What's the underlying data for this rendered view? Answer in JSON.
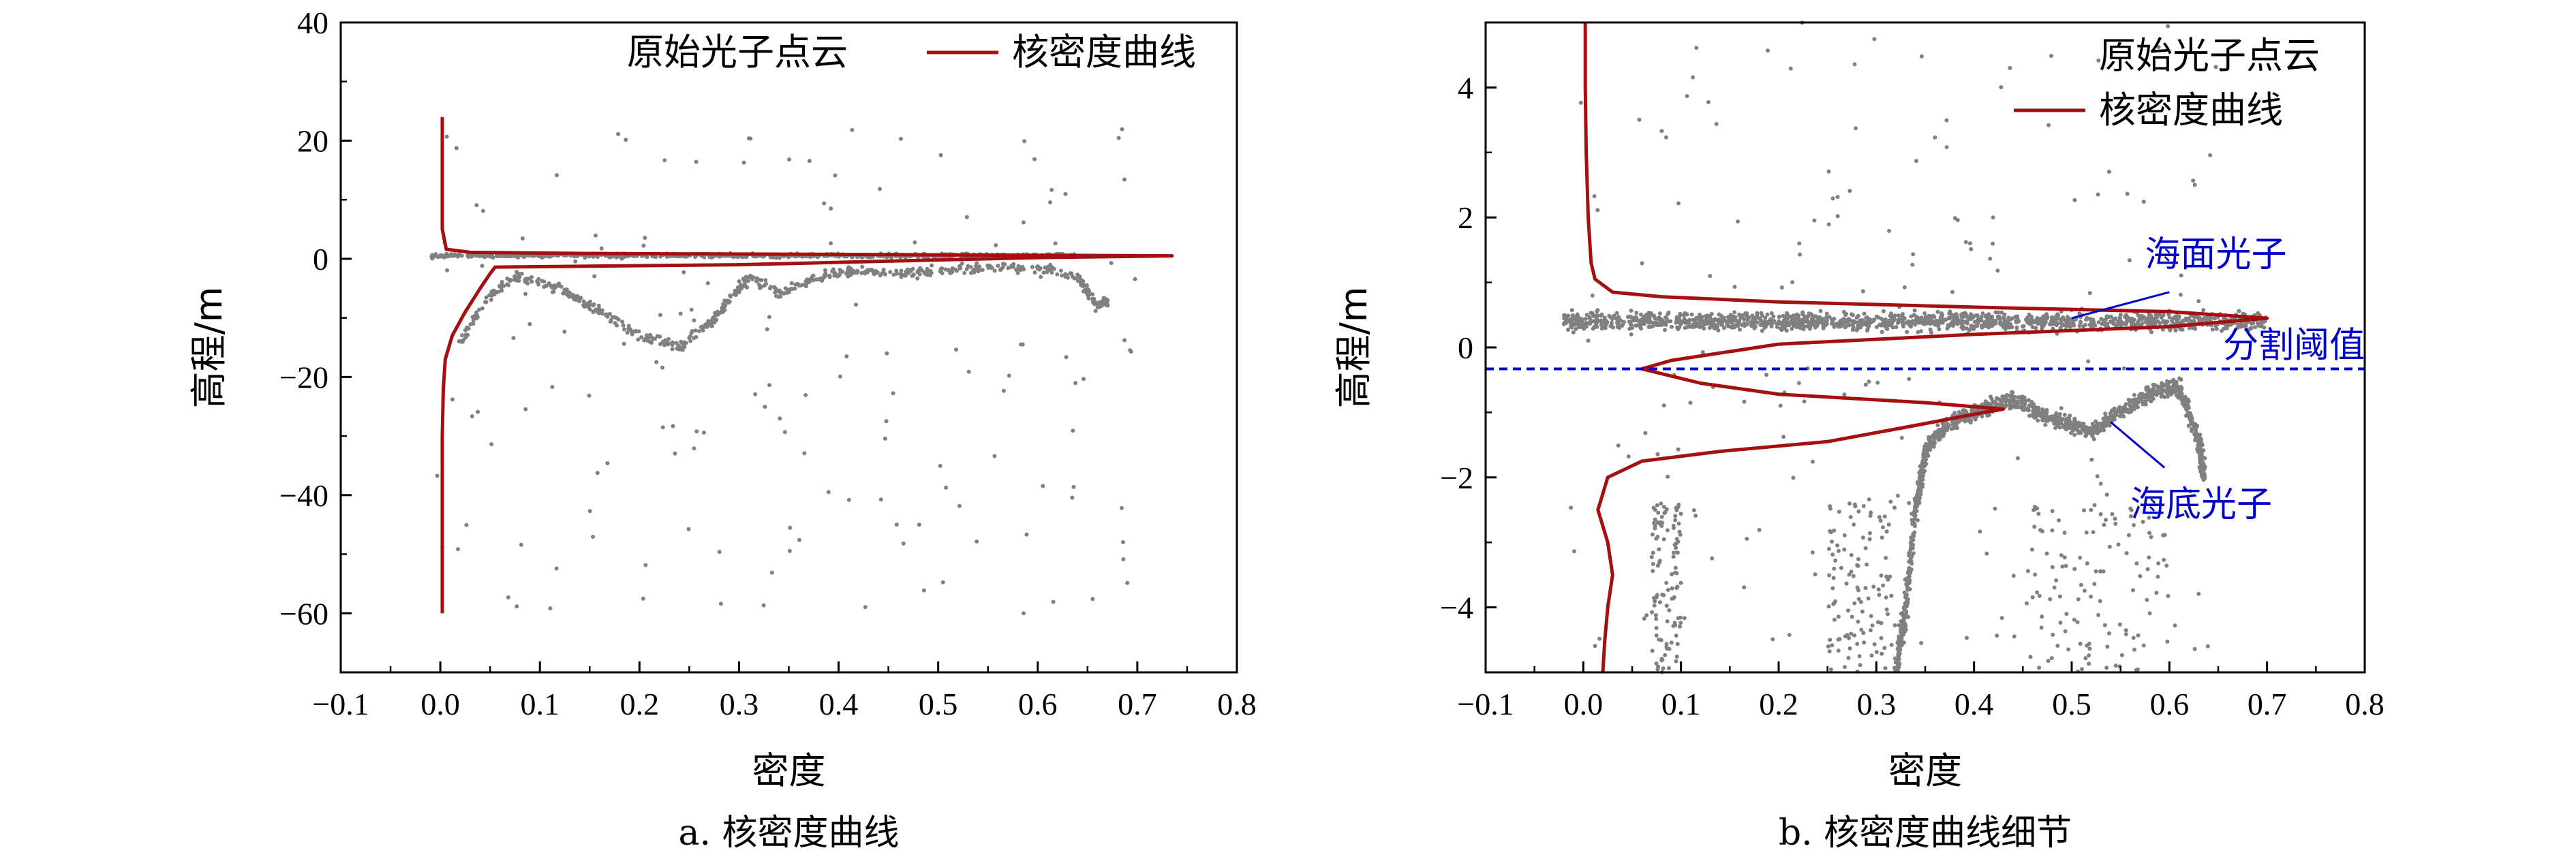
{
  "colors": {
    "points": "#808080",
    "curve": "#a50f0f",
    "threshold": "#0000cc",
    "annotation": "#0000cc",
    "axis": "#000000"
  },
  "legend": {
    "points_label": "原始光子点云",
    "curve_label": "核密度曲线"
  },
  "chart_data": [
    {
      "type": "scatter",
      "caption": "a. 核密度曲线",
      "xlabel": "密度",
      "ylabel": "高程/m",
      "xlim": [
        -0.1,
        0.8
      ],
      "ylim": [
        -70,
        40
      ],
      "xticks": [
        "−0.1",
        "0.0",
        "0.1",
        "0.2",
        "0.3",
        "0.4",
        "0.5",
        "0.6",
        "0.7",
        "0.8"
      ],
      "xtick_values": [
        -0.1,
        0,
        0.1,
        0.2,
        0.3,
        0.4,
        0.5,
        0.6,
        0.7,
        0.8
      ],
      "yticks": [
        "40",
        "20",
        "0",
        "−20",
        "−40",
        "−60"
      ],
      "ytick_values": [
        40,
        20,
        0,
        -20,
        -40,
        -60
      ],
      "legend_position": "top",
      "series": [
        {
          "name": "原始光子点云",
          "kind": "points",
          "surface_x_range": [
            -0.01,
            0.64
          ],
          "surface_y_range": [
            0.1,
            1.0
          ],
          "bottom_profile": [
            [
              0.02,
              -14
            ],
            [
              0.05,
              -6
            ],
            [
              0.08,
              -3
            ],
            [
              0.12,
              -5
            ],
            [
              0.16,
              -9
            ],
            [
              0.2,
              -13
            ],
            [
              0.24,
              -15
            ],
            [
              0.27,
              -11
            ],
            [
              0.29,
              -7
            ],
            [
              0.31,
              -3
            ],
            [
              0.34,
              -6
            ],
            [
              0.38,
              -3
            ],
            [
              0.42,
              -2
            ],
            [
              0.46,
              -2.5
            ],
            [
              0.5,
              -2
            ],
            [
              0.55,
              -1.5
            ],
            [
              0.6,
              -1.5
            ],
            [
              0.64,
              -3
            ],
            [
              0.66,
              -8
            ],
            [
              0.67,
              -7
            ]
          ],
          "scattered_noise_x_range": [
            -0.01,
            0.7
          ],
          "scattered_noise_y_range": [
            -60,
            22
          ]
        },
        {
          "name": "核密度曲线",
          "kind": "curve",
          "points": [
            [
              0.002,
              -60
            ],
            [
              0.002,
              -50
            ],
            [
              0.002,
              -40
            ],
            [
              0.002,
              -30
            ],
            [
              0.003,
              -22
            ],
            [
              0.005,
              -17
            ],
            [
              0.012,
              -13
            ],
            [
              0.025,
              -9
            ],
            [
              0.04,
              -5
            ],
            [
              0.05,
              -2.5
            ],
            [
              0.055,
              -1.4
            ],
            [
              0.3,
              -1.0
            ],
            [
              0.5,
              -0.2
            ],
            [
              0.6,
              0.2
            ],
            [
              0.735,
              0.5
            ],
            [
              0.45,
              0.7
            ],
            [
              0.15,
              0.9
            ],
            [
              0.03,
              1.1
            ],
            [
              0.006,
              1.6
            ],
            [
              0.002,
              5
            ],
            [
              0.002,
              15
            ],
            [
              0.002,
              24
            ]
          ]
        }
      ]
    },
    {
      "type": "scatter",
      "caption": "b. 核密度曲线细节",
      "xlabel": "密度",
      "ylabel": "高程/m",
      "xlim": [
        -0.1,
        0.8
      ],
      "ylim": [
        -5,
        5
      ],
      "xticks": [
        "−0.1",
        "0.0",
        "0.1",
        "0.2",
        "0.3",
        "0.4",
        "0.5",
        "0.6",
        "0.7",
        "0.8"
      ],
      "xtick_values": [
        -0.1,
        0,
        0.1,
        0.2,
        0.3,
        0.4,
        0.5,
        0.6,
        0.7,
        0.8
      ],
      "yticks": [
        "4",
        "2",
        "0",
        "−2",
        "−4"
      ],
      "ytick_values": [
        4,
        2,
        0,
        -2,
        -4
      ],
      "legend_position": "top-right",
      "threshold_y": -0.33,
      "annotations": {
        "sea_surface": "海面光子",
        "threshold": "分割阈值",
        "sea_bottom": "海底光子"
      },
      "series": [
        {
          "name": "原始光子点云",
          "kind": "points",
          "surface_x_range": [
            -0.02,
            0.7
          ],
          "surface_y_range": [
            0.2,
            0.6
          ],
          "bottom_profile": [
            [
              0.32,
              -5
            ],
            [
              0.33,
              -4
            ],
            [
              0.34,
              -2.5
            ],
            [
              0.35,
              -1.6
            ],
            [
              0.37,
              -1.2
            ],
            [
              0.4,
              -1.0
            ],
            [
              0.44,
              -0.8
            ],
            [
              0.48,
              -1.1
            ],
            [
              0.52,
              -1.3
            ],
            [
              0.55,
              -1.0
            ],
            [
              0.58,
              -0.7
            ],
            [
              0.61,
              -0.6
            ],
            [
              0.63,
              -1.4
            ],
            [
              0.635,
              -2.0
            ]
          ],
          "column_x_ranges": [
            [
              0.07,
              0.1
            ],
            [
              0.25,
              0.32
            ],
            [
              0.45,
              0.6
            ]
          ],
          "scattered_noise_x_range": [
            -0.02,
            0.65
          ],
          "scattered_noise_y_range": [
            -5,
            5
          ]
        },
        {
          "name": "核密度曲线",
          "kind": "curve",
          "points": [
            [
              0.02,
              -5
            ],
            [
              0.022,
              -4.5
            ],
            [
              0.025,
              -4
            ],
            [
              0.03,
              -3.5
            ],
            [
              0.025,
              -3
            ],
            [
              0.015,
              -2.5
            ],
            [
              0.025,
              -2
            ],
            [
              0.06,
              -1.75
            ],
            [
              0.14,
              -1.6
            ],
            [
              0.25,
              -1.45
            ],
            [
              0.34,
              -1.2
            ],
            [
              0.41,
              -1.0
            ],
            [
              0.43,
              -0.95
            ],
            [
              0.35,
              -0.85
            ],
            [
              0.2,
              -0.72
            ],
            [
              0.12,
              -0.55
            ],
            [
              0.06,
              -0.33
            ],
            [
              0.09,
              -0.2
            ],
            [
              0.2,
              0.05
            ],
            [
              0.4,
              0.2
            ],
            [
              0.6,
              0.32
            ],
            [
              0.7,
              0.45
            ],
            [
              0.6,
              0.55
            ],
            [
              0.4,
              0.62
            ],
            [
              0.2,
              0.7
            ],
            [
              0.08,
              0.78
            ],
            [
              0.03,
              0.85
            ],
            [
              0.012,
              1.05
            ],
            [
              0.008,
              1.3
            ],
            [
              0.005,
              2
            ],
            [
              0.003,
              3
            ],
            [
              0.002,
              4
            ],
            [
              0.002,
              5
            ]
          ]
        }
      ]
    }
  ]
}
